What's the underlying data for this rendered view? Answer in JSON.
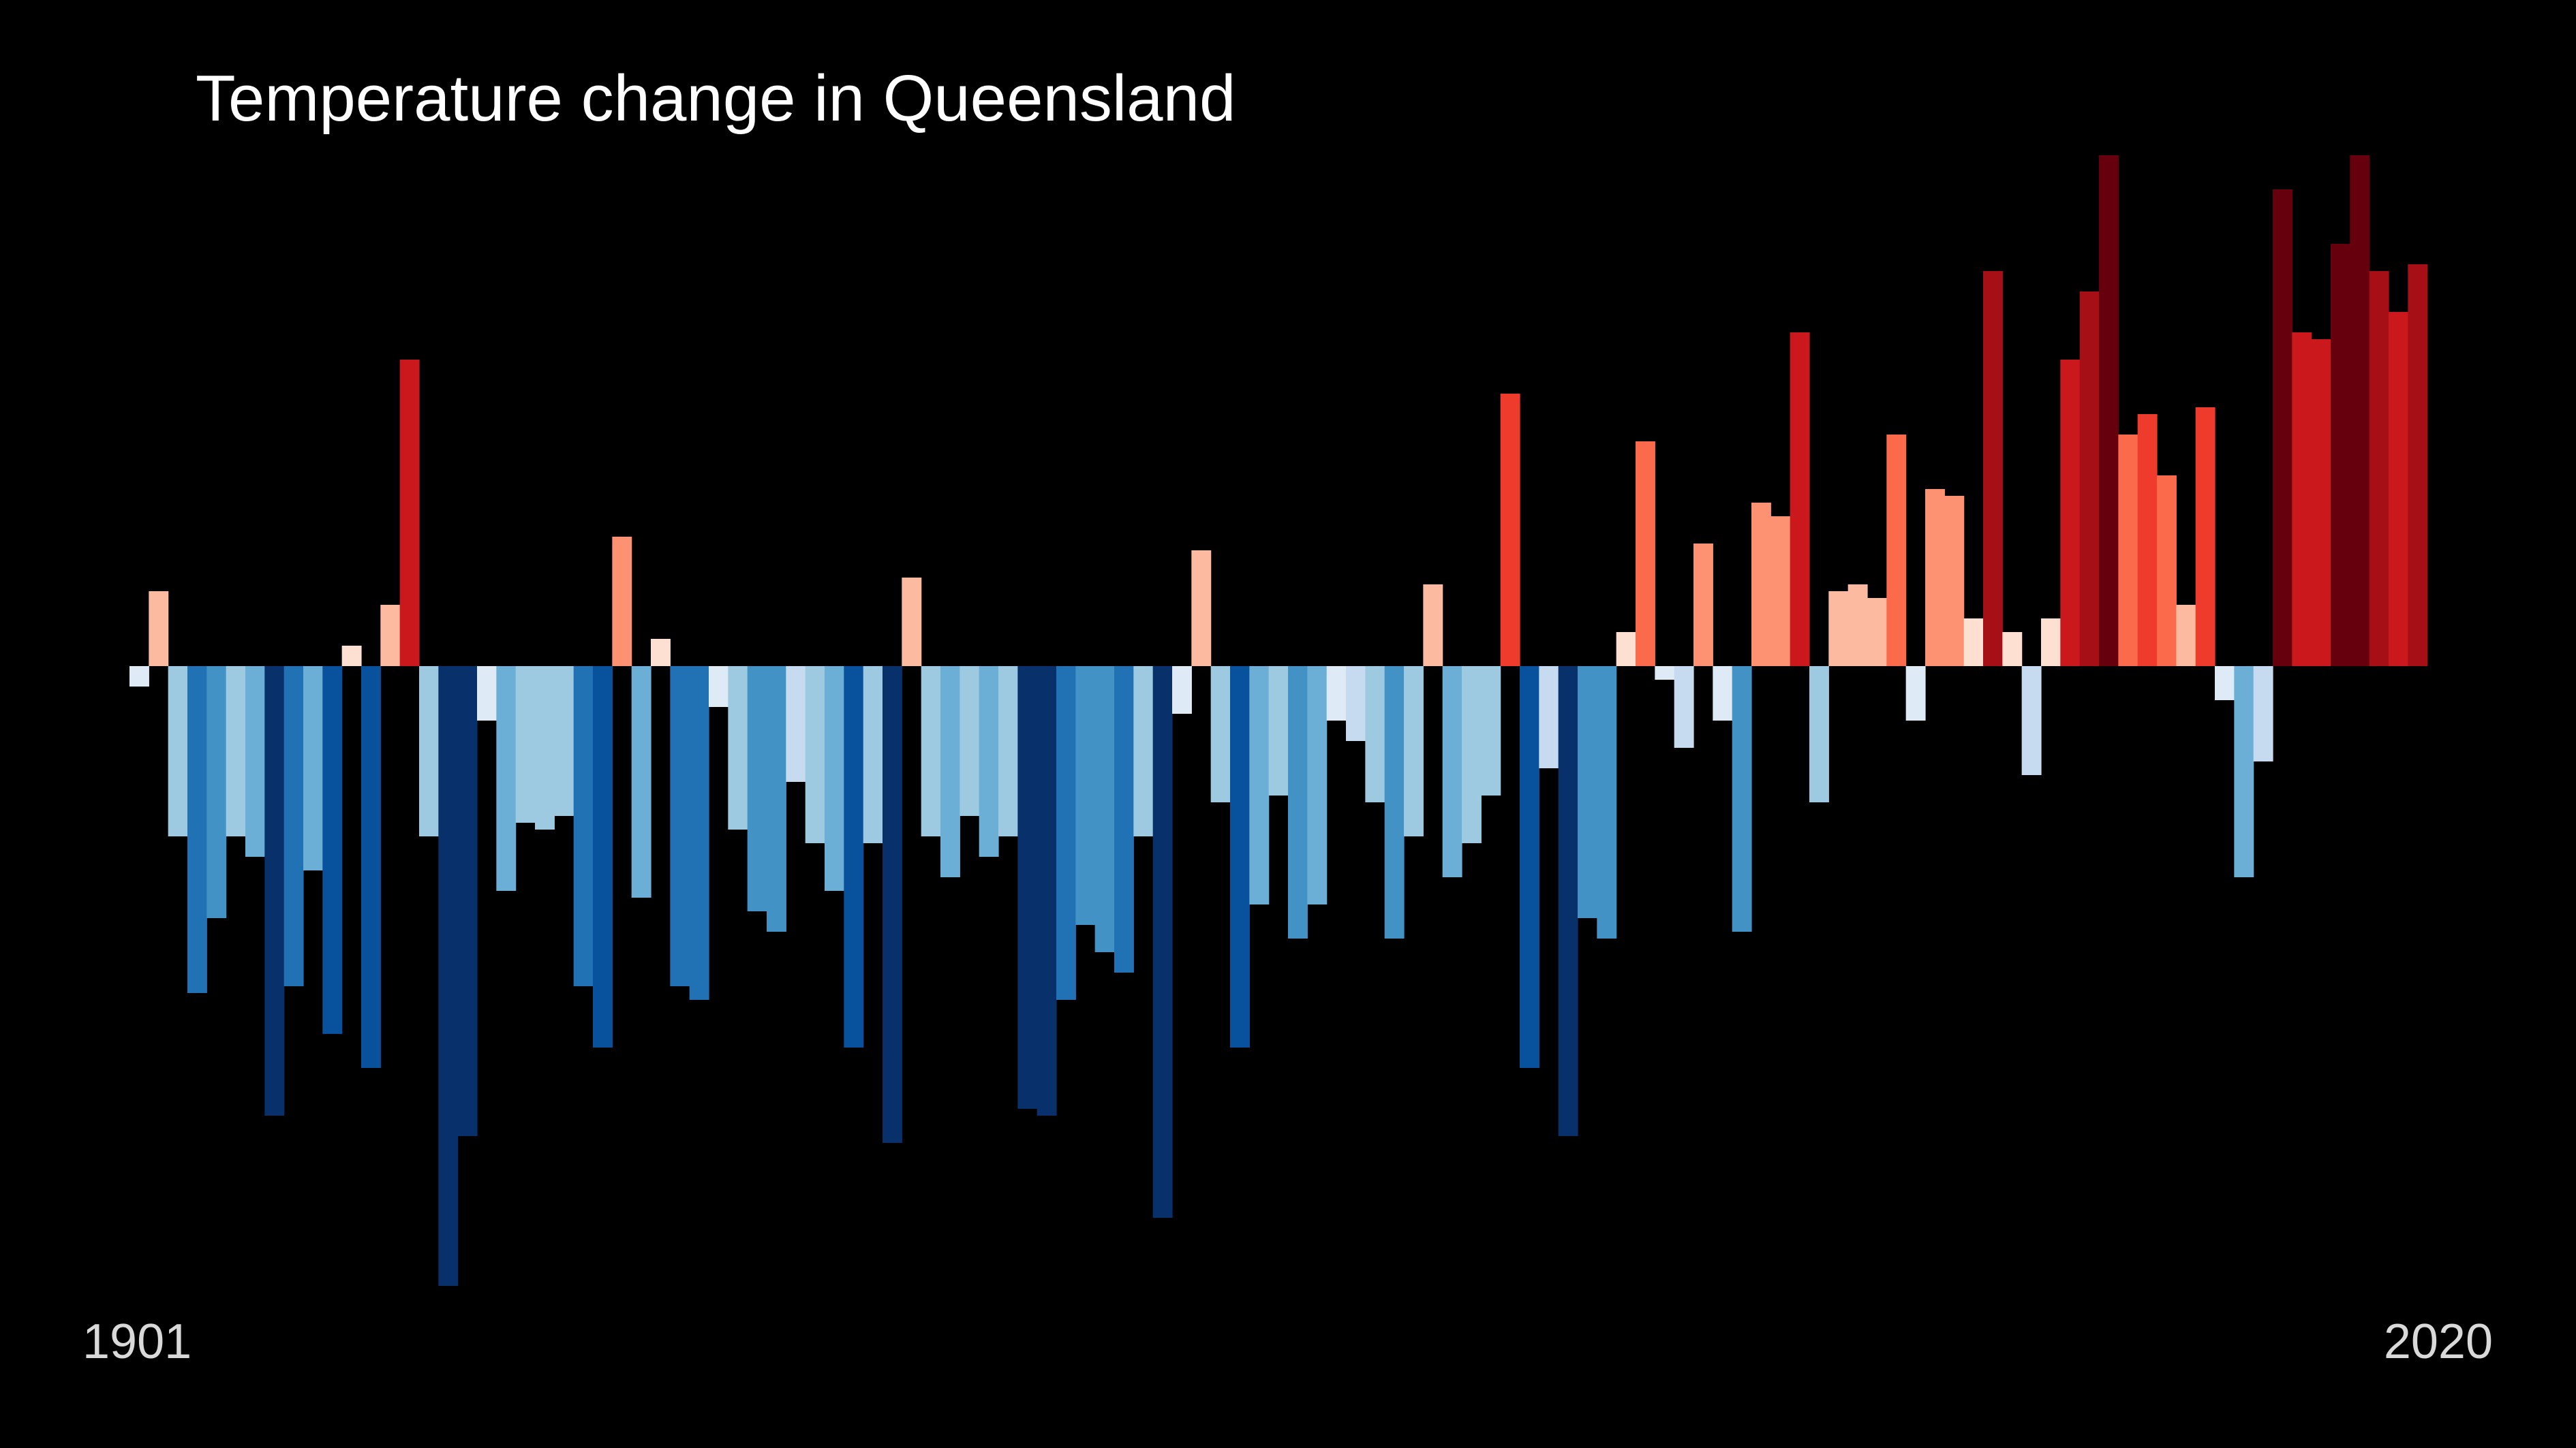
{
  "chart_data": {
    "type": "bar",
    "title": "Temperature change in Queensland",
    "start_label": "1901",
    "end_label": "2020",
    "x_start": 1901,
    "x_end": 2020,
    "xlabel": "",
    "ylabel": "",
    "ylim": [
      -0.91,
      0.75
    ],
    "axes_visible": false,
    "grid": false,
    "legend": "none",
    "values": [
      -0.03,
      0.11,
      -0.25,
      -0.48,
      -0.37,
      -0.25,
      -0.28,
      -0.66,
      -0.47,
      -0.3,
      -0.54,
      0.03,
      -0.59,
      0.09,
      0.45,
      -0.25,
      -0.91,
      -0.69,
      -0.08,
      -0.33,
      -0.23,
      -0.24,
      -0.22,
      -0.47,
      -0.56,
      0.19,
      -0.34,
      0.04,
      -0.47,
      -0.49,
      -0.06,
      -0.24,
      -0.36,
      -0.39,
      -0.17,
      -0.26,
      -0.33,
      -0.56,
      -0.26,
      -0.7,
      0.13,
      -0.25,
      -0.31,
      -0.22,
      -0.28,
      -0.25,
      -0.65,
      -0.66,
      -0.49,
      -0.38,
      -0.42,
      -0.45,
      -0.25,
      -0.81,
      -0.07,
      0.17,
      -0.2,
      -0.56,
      -0.35,
      -0.19,
      -0.4,
      -0.35,
      -0.08,
      -0.11,
      -0.2,
      -0.4,
      -0.25,
      0.12,
      -0.31,
      -0.26,
      -0.19,
      0.4,
      -0.59,
      -0.15,
      -0.69,
      -0.37,
      -0.4,
      0.05,
      0.33,
      -0.02,
      -0.12,
      0.18,
      -0.08,
      -0.39,
      0.24,
      0.22,
      0.49,
      -0.2,
      0.11,
      0.12,
      0.1,
      0.34,
      -0.08,
      0.26,
      0.25,
      0.07,
      0.58,
      0.05,
      -0.16,
      0.07,
      0.45,
      0.55,
      0.75,
      0.34,
      0.37,
      0.28,
      0.09,
      0.38,
      -0.05,
      -0.31,
      -0.14,
      0.7,
      0.49,
      0.48,
      0.62,
      0.75,
      0.58,
      0.52,
      0.59,
      0.0
    ]
  },
  "colors": {
    "background": "#000000",
    "title_text": "#ffffff",
    "year_text": "#d9d9d9",
    "stripes_scale": [
      "#08306b",
      "#08519c",
      "#2171b5",
      "#4292c6",
      "#6baed6",
      "#9ecae1",
      "#c6dbef",
      "#deebf7",
      "#fee0d2",
      "#fcbba1",
      "#fc9272",
      "#fb6a4a",
      "#ef3b2c",
      "#cb181d",
      "#a50f15",
      "#67000d"
    ]
  }
}
